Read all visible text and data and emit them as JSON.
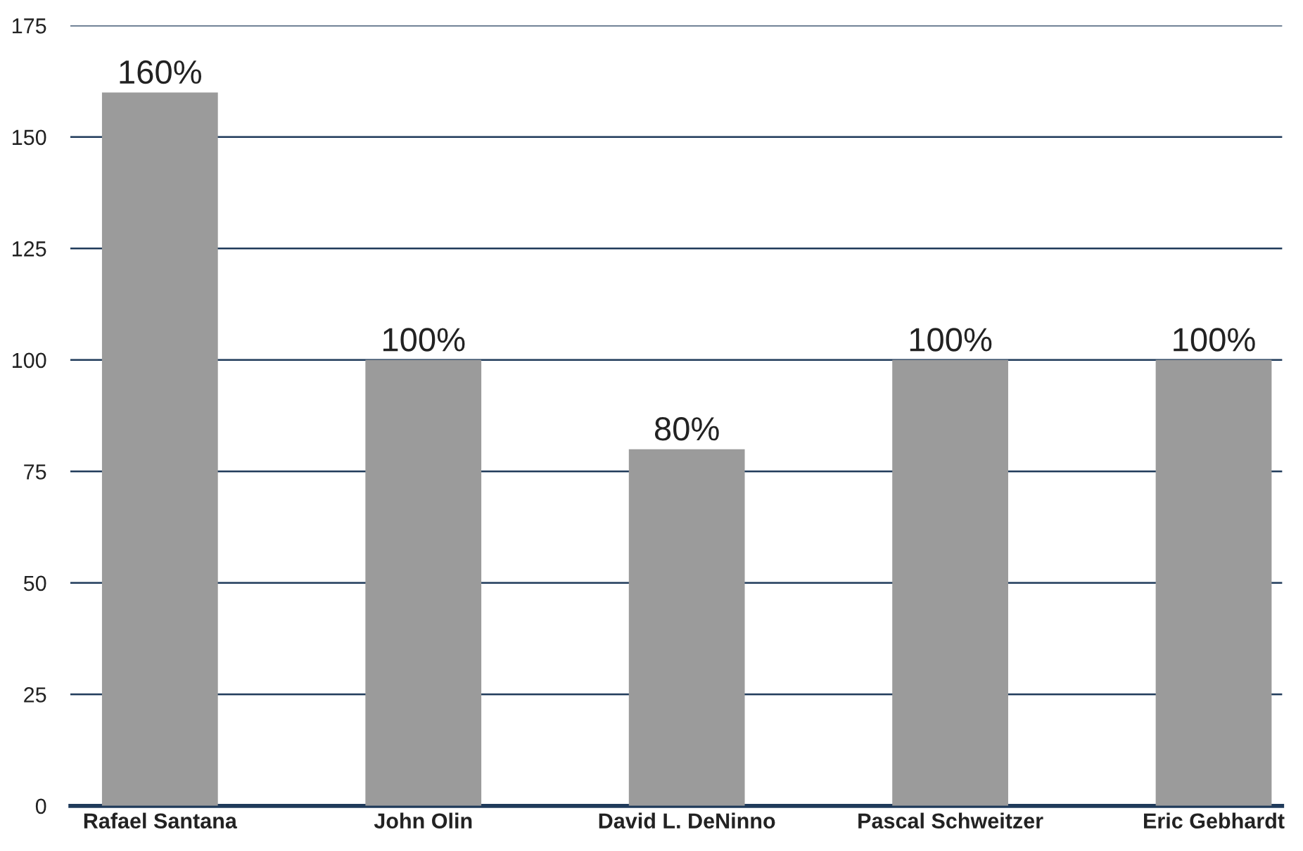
{
  "chart_data": {
    "type": "bar",
    "categories": [
      "Rafael Santana",
      "John Olin",
      "David L. DeNinno",
      "Pascal Schweitzer",
      "Eric Gebhardt"
    ],
    "values": [
      160,
      100,
      80,
      100,
      100
    ],
    "value_labels": [
      "160%",
      "100%",
      "80%",
      "100%",
      "100%"
    ],
    "color": "#9b9b9b",
    "ylim": [
      0,
      175
    ],
    "yticks": [
      0,
      25,
      50,
      75,
      100,
      125,
      150,
      175
    ],
    "grid": "y",
    "legend": false
  }
}
